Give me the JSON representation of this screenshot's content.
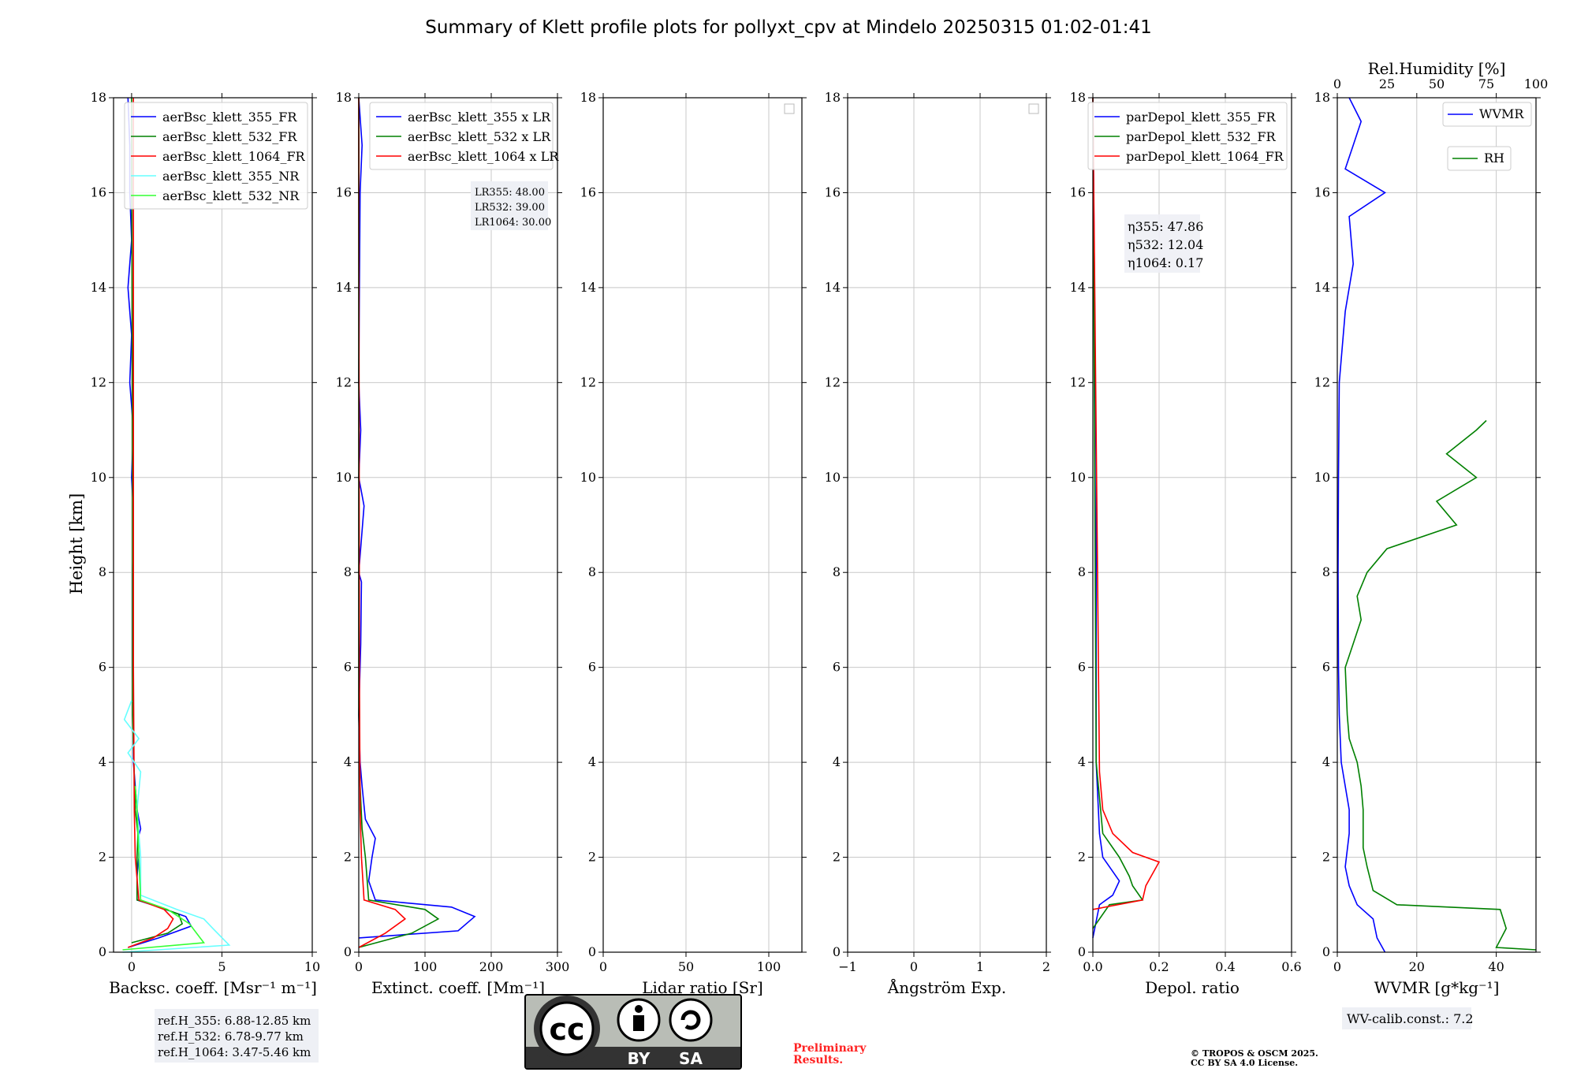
{
  "title": "Summary of Klett profile plots for pollyxt_cpv at Mindelo 20250315 01:02-01:41",
  "ylabel": "Height [km]",
  "chart_data": [
    {
      "type": "line",
      "xlabel": "Backsc. coeff. [Msr⁻¹ m⁻¹]",
      "xlim": [
        -1,
        10
      ],
      "ylim": [
        0,
        18
      ],
      "xticks": [
        0,
        5,
        10
      ],
      "yticks": [
        0,
        2,
        4,
        6,
        8,
        10,
        12,
        14,
        16,
        18
      ],
      "grid": true,
      "legend_loc": "upper-right",
      "series": [
        {
          "name": "aerBsc_klett_355_FR",
          "color": "#0000ff",
          "points": [
            [
              -0.2,
              0.1
            ],
            [
              1.5,
              0.3
            ],
            [
              3.3,
              0.55
            ],
            [
              3.0,
              0.75
            ],
            [
              1.5,
              0.95
            ],
            [
              0.3,
              1.1
            ],
            [
              0.3,
              1.6
            ],
            [
              0.4,
              2.0
            ],
            [
              0.35,
              2.4
            ],
            [
              0.5,
              2.6
            ],
            [
              0.3,
              3.0
            ],
            [
              0.1,
              4.0
            ],
            [
              0.05,
              6.0
            ],
            [
              0.05,
              8.0
            ],
            [
              0.1,
              9.3
            ],
            [
              0.0,
              10.0
            ],
            [
              0.1,
              11.0
            ],
            [
              -0.1,
              12.0
            ],
            [
              0.0,
              13.0
            ],
            [
              -0.2,
              14.0
            ],
            [
              0.0,
              15.0
            ],
            [
              -0.1,
              16.0
            ],
            [
              -0.1,
              17.0
            ],
            [
              -0.2,
              18.0
            ]
          ]
        },
        {
          "name": "aerBsc_klett_532_FR",
          "color": "#008000",
          "points": [
            [
              0.0,
              0.2
            ],
            [
              2.0,
              0.4
            ],
            [
              2.8,
              0.6
            ],
            [
              2.6,
              0.8
            ],
            [
              1.2,
              1.0
            ],
            [
              0.3,
              1.1
            ],
            [
              0.3,
              2.0
            ],
            [
              0.35,
              2.5
            ],
            [
              0.2,
              3.0
            ],
            [
              0.05,
              5.0
            ],
            [
              0.05,
              10.0
            ],
            [
              0.0,
              18.0
            ]
          ]
        },
        {
          "name": "aerBsc_klett_1064_FR",
          "color": "#ff0000",
          "points": [
            [
              -0.2,
              0.1
            ],
            [
              1.2,
              0.3
            ],
            [
              2.0,
              0.5
            ],
            [
              2.3,
              0.7
            ],
            [
              1.8,
              0.9
            ],
            [
              0.4,
              1.1
            ],
            [
              0.2,
              2.0
            ],
            [
              0.15,
              3.0
            ],
            [
              0.1,
              6.0
            ],
            [
              0.1,
              12.0
            ],
            [
              0.1,
              18.0
            ]
          ]
        },
        {
          "name": "aerBsc_klett_355_NR",
          "color": "#66ffff",
          "points": [
            [
              -0.5,
              0.0
            ],
            [
              5.4,
              0.15
            ],
            [
              4.5,
              0.5
            ],
            [
              4.0,
              0.7
            ],
            [
              2.5,
              0.9
            ],
            [
              0.5,
              1.2
            ],
            [
              0.5,
              2.0
            ],
            [
              0.3,
              3.0
            ],
            [
              0.5,
              3.8
            ],
            [
              -0.2,
              4.2
            ],
            [
              0.4,
              4.5
            ],
            [
              -0.4,
              4.9
            ],
            [
              0.0,
              5.3
            ]
          ]
        },
        {
          "name": "aerBsc_klett_532_NR",
          "color": "#33ff33",
          "points": [
            [
              -0.5,
              0.05
            ],
            [
              4.0,
              0.2
            ],
            [
              3.2,
              0.6
            ],
            [
              2.0,
              0.9
            ],
            [
              0.5,
              1.1
            ],
            [
              0.4,
              2.0
            ],
            [
              0.3,
              3.0
            ],
            [
              0.2,
              3.5
            ]
          ]
        }
      ],
      "annotations": [
        "ref.H_355: 6.88-12.85 km",
        "ref.H_532: 6.78-9.77 km",
        "ref.H_1064: 3.47-5.46 km"
      ]
    },
    {
      "type": "line",
      "xlabel": "Extinct. coeff. [Mm⁻¹]",
      "xlim": [
        0,
        300
      ],
      "ylim": [
        0,
        18
      ],
      "xticks": [
        0,
        100,
        200,
        300
      ],
      "yticks": [
        0,
        2,
        4,
        6,
        8,
        10,
        12,
        14,
        16,
        18
      ],
      "grid": true,
      "legend_loc": "upper-right",
      "series": [
        {
          "name": "aerBsc_klett_355 x LR",
          "color": "#0000ff",
          "points": [
            [
              0,
              0.3
            ],
            [
              150,
              0.45
            ],
            [
              175,
              0.75
            ],
            [
              140,
              0.95
            ],
            [
              25,
              1.1
            ],
            [
              15,
              1.5
            ],
            [
              20,
              2.0
            ],
            [
              25,
              2.4
            ],
            [
              10,
              2.8
            ],
            [
              5,
              3.5
            ],
            [
              2,
              4.0
            ],
            [
              0,
              5.0
            ],
            [
              3,
              6.5
            ],
            [
              4,
              7.8
            ],
            [
              0,
              8.0
            ],
            [
              8,
              9.4
            ],
            [
              0,
              10.0
            ],
            [
              3,
              11.0
            ],
            [
              0,
              12.0
            ],
            [
              1,
              14.0
            ],
            [
              2,
              16.0
            ],
            [
              5,
              17.0
            ],
            [
              0,
              18.0
            ]
          ]
        },
        {
          "name": "aerBsc_klett_532 x LR",
          "color": "#008000",
          "points": [
            [
              0,
              0.1
            ],
            [
              80,
              0.4
            ],
            [
              120,
              0.7
            ],
            [
              100,
              0.9
            ],
            [
              15,
              1.1
            ],
            [
              10,
              2.0
            ],
            [
              5,
              2.6
            ],
            [
              2,
              3.5
            ],
            [
              0,
              5.0
            ],
            [
              0,
              18.0
            ]
          ]
        },
        {
          "name": "aerBsc_klett_1064 x LR",
          "color": "#ff0000",
          "points": [
            [
              0,
              0.1
            ],
            [
              40,
              0.4
            ],
            [
              70,
              0.7
            ],
            [
              55,
              0.9
            ],
            [
              8,
              1.1
            ],
            [
              4,
              2.0
            ],
            [
              2,
              3.0
            ],
            [
              1,
              6.0
            ],
            [
              0,
              18.0
            ]
          ]
        }
      ],
      "annotations": [
        "LR355: 48.00",
        "LR532: 39.00",
        "LR1064: 30.00"
      ]
    },
    {
      "type": "line",
      "xlabel": "Lidar ratio [Sr]",
      "xlim": [
        0,
        120
      ],
      "ylim": [
        0,
        18
      ],
      "xticks": [
        0,
        50,
        100
      ],
      "yticks": [
        0,
        2,
        4,
        6,
        8,
        10,
        12,
        14,
        16,
        18
      ],
      "grid": true,
      "legend_loc": "upper-right",
      "series": []
    },
    {
      "type": "line",
      "xlabel": "Ångström Exp.",
      "xlim": [
        -1,
        2
      ],
      "ylim": [
        0,
        18
      ],
      "xticks": [
        -1,
        0,
        1,
        2
      ],
      "yticks": [
        0,
        2,
        4,
        6,
        8,
        10,
        12,
        14,
        16,
        18
      ],
      "grid": true,
      "legend_loc": "upper-right",
      "series": []
    },
    {
      "type": "line",
      "xlabel": "Depol. ratio",
      "xlim": [
        0,
        0.6
      ],
      "ylim": [
        0,
        18
      ],
      "xticks": [
        0.0,
        0.2,
        0.4,
        0.6
      ],
      "yticks": [
        0,
        2,
        4,
        6,
        8,
        10,
        12,
        14,
        16,
        18
      ],
      "grid": true,
      "legend_loc": "upper-right",
      "series": [
        {
          "name": "parDepol_klett_355_FR",
          "color": "#0000ff",
          "points": [
            [
              0.0,
              0.3
            ],
            [
              0.02,
              1.0
            ],
            [
              0.06,
              1.2
            ],
            [
              0.08,
              1.5
            ],
            [
              0.05,
              1.8
            ],
            [
              0.03,
              2.0
            ],
            [
              0.02,
              2.5
            ],
            [
              0.01,
              4.0
            ],
            [
              0.01,
              10.0
            ],
            [
              0.0,
              18.0
            ]
          ]
        },
        {
          "name": "parDepol_klett_532_FR",
          "color": "#008000",
          "points": [
            [
              0.0,
              0.5
            ],
            [
              0.05,
              1.0
            ],
            [
              0.15,
              1.1
            ],
            [
              0.12,
              1.4
            ],
            [
              0.11,
              1.6
            ],
            [
              0.08,
              2.0
            ],
            [
              0.06,
              2.2
            ],
            [
              0.03,
              2.5
            ],
            [
              0.01,
              4.0
            ],
            [
              0.0,
              18.0
            ]
          ]
        },
        {
          "name": "parDepol_klett_1064_FR",
          "color": "#ff0000",
          "points": [
            [
              0.0,
              0.9
            ],
            [
              0.15,
              1.1
            ],
            [
              0.16,
              1.4
            ],
            [
              0.2,
              1.9
            ],
            [
              0.12,
              2.1
            ],
            [
              0.06,
              2.5
            ],
            [
              0.03,
              3.0
            ],
            [
              0.02,
              3.8
            ],
            [
              0.0,
              18.0
            ]
          ]
        }
      ],
      "annotations": [
        "η355: 47.86",
        "η532: 12.04",
        "η1064: 0.17"
      ]
    },
    {
      "type": "line",
      "xlabel": "WVMR [g*kg⁻¹]",
      "x2label": "Rel.Humidity [%]",
      "xlim": [
        0,
        50
      ],
      "x2lim": [
        0,
        100
      ],
      "ylim": [
        0,
        18
      ],
      "xticks": [
        0,
        20,
        40
      ],
      "x2ticks": [
        0,
        25,
        50,
        75,
        100
      ],
      "yticks": [
        0,
        2,
        4,
        6,
        8,
        10,
        12,
        14,
        16,
        18
      ],
      "grid": true,
      "legend_loc": "upper-right",
      "series": [
        {
          "name": "WVMR",
          "color": "#0000ff",
          "axis": "x",
          "points": [
            [
              12,
              0.0
            ],
            [
              10,
              0.3
            ],
            [
              9,
              0.7
            ],
            [
              5,
              1.0
            ],
            [
              3,
              1.4
            ],
            [
              2,
              1.8
            ],
            [
              3,
              2.5
            ],
            [
              3,
              3.0
            ],
            [
              1,
              4.0
            ],
            [
              0.5,
              5.0
            ],
            [
              0.3,
              6.0
            ],
            [
              0.2,
              8.0
            ],
            [
              0.3,
              10.0
            ],
            [
              0.5,
              12.0
            ],
            [
              2,
              13.5
            ],
            [
              4,
              14.5
            ],
            [
              3,
              15.5
            ],
            [
              12,
              16.0
            ],
            [
              2,
              16.5
            ],
            [
              4,
              17.0
            ],
            [
              6,
              17.5
            ],
            [
              3,
              18.0
            ]
          ]
        },
        {
          "name": "RH",
          "color": "#008000",
          "axis": "x2",
          "points": [
            [
              100,
              0.05
            ],
            [
              80,
              0.1
            ],
            [
              85,
              0.5
            ],
            [
              82,
              0.9
            ],
            [
              30,
              1.0
            ],
            [
              18,
              1.3
            ],
            [
              15,
              1.8
            ],
            [
              13,
              2.2
            ],
            [
              13,
              3.0
            ],
            [
              12,
              3.5
            ],
            [
              10,
              4.0
            ],
            [
              6,
              4.5
            ],
            [
              5,
              5.0
            ],
            [
              4,
              6.0
            ],
            [
              8,
              6.5
            ],
            [
              12,
              7.0
            ],
            [
              10,
              7.5
            ],
            [
              15,
              8.0
            ],
            [
              25,
              8.5
            ],
            [
              60,
              9.0
            ],
            [
              50,
              9.5
            ],
            [
              70,
              10.0
            ],
            [
              55,
              10.5
            ],
            [
              70,
              11.0
            ],
            [
              75,
              11.2
            ]
          ]
        }
      ],
      "annotations": [
        "WV-calib.const.: 7.2"
      ]
    }
  ],
  "license_labels": {
    "by": "BY",
    "sa": "SA",
    "cc": "cc"
  },
  "preliminary": [
    "Preliminary",
    "Results."
  ],
  "copyright": [
    "© TROPOS & OSCM 2025.",
    "CC BY SA 4.0 License."
  ]
}
